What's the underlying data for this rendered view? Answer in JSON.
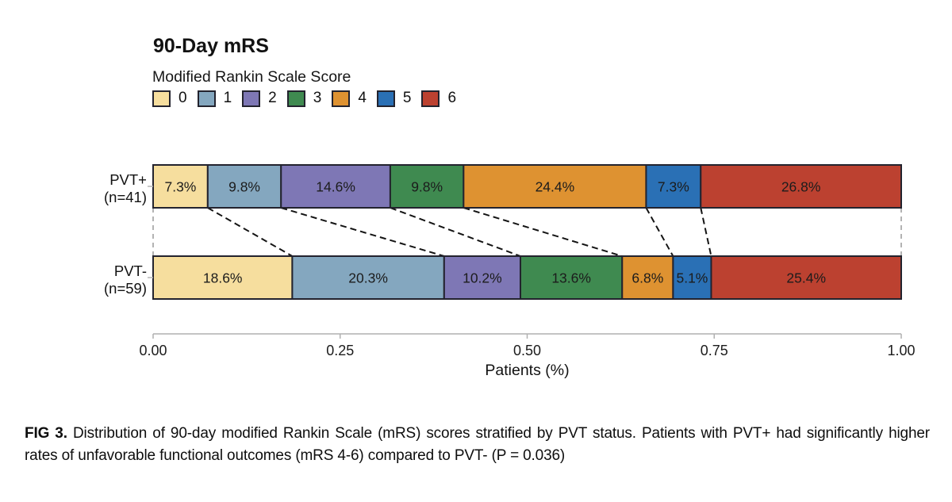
{
  "chart_data": {
    "type": "bar",
    "orientation": "horizontal-stacked",
    "title": "90-Day mRS",
    "legend": {
      "title": "Modified Rankin Scale Score",
      "entries": [
        {
          "label": "0"
        },
        {
          "label": "1"
        },
        {
          "label": "2"
        },
        {
          "label": "3"
        },
        {
          "label": "4"
        },
        {
          "label": "5"
        },
        {
          "label": "6"
        }
      ],
      "position": "top-left"
    },
    "colors": [
      "#F6DE9E",
      "#84A7BF",
      "#7E77B5",
      "#3F8A50",
      "#DE9231",
      "#2A70B5",
      "#BC4130"
    ],
    "categories": [
      "PVT+ (n=41)",
      "PVT- (n=59)"
    ],
    "rows": [
      {
        "id": "pvt-plus",
        "label_lines": [
          "PVT+",
          "(n=41)"
        ],
        "values": [
          7.3,
          9.8,
          14.6,
          9.8,
          24.4,
          7.3,
          26.8
        ],
        "labels": [
          "7.3%",
          "9.8%",
          "14.6%",
          "9.8%",
          "24.4%",
          "7.3%",
          "26.8%"
        ]
      },
      {
        "id": "pvt-minus",
        "label_lines": [
          "PVT-",
          "(n=59)"
        ],
        "values": [
          18.6,
          20.3,
          10.2,
          13.6,
          6.8,
          5.1,
          25.4
        ],
        "labels": [
          "18.6%",
          "20.3%",
          "10.2%",
          "13.6%",
          "6.8%",
          "5.1%",
          "25.4%"
        ]
      }
    ],
    "xlabel": "Patients (%)",
    "x_ticks": [
      "0.00",
      "0.25",
      "0.50",
      "0.75",
      "1.00"
    ],
    "xlim": [
      0,
      1
    ],
    "grid": false,
    "connectors": "dashed lines between cumulative boundaries of the two bars",
    "style_colors": {
      "segment_border": "#23232e",
      "connector_dash": "#141414",
      "edge_dash": "#9a9a9a",
      "axis": "#b0b0b0",
      "ytick": "#b5b5b5"
    }
  },
  "caption": {
    "prefix": "FIG 3.",
    "text": "Distribution of 90-day modified Rankin Scale (mRS) scores stratified by PVT status. Patients with PVT+ had significantly higher rates of unfavorable functional outcomes (mRS 4-6) compared to PVT- (P = 0.036)"
  }
}
